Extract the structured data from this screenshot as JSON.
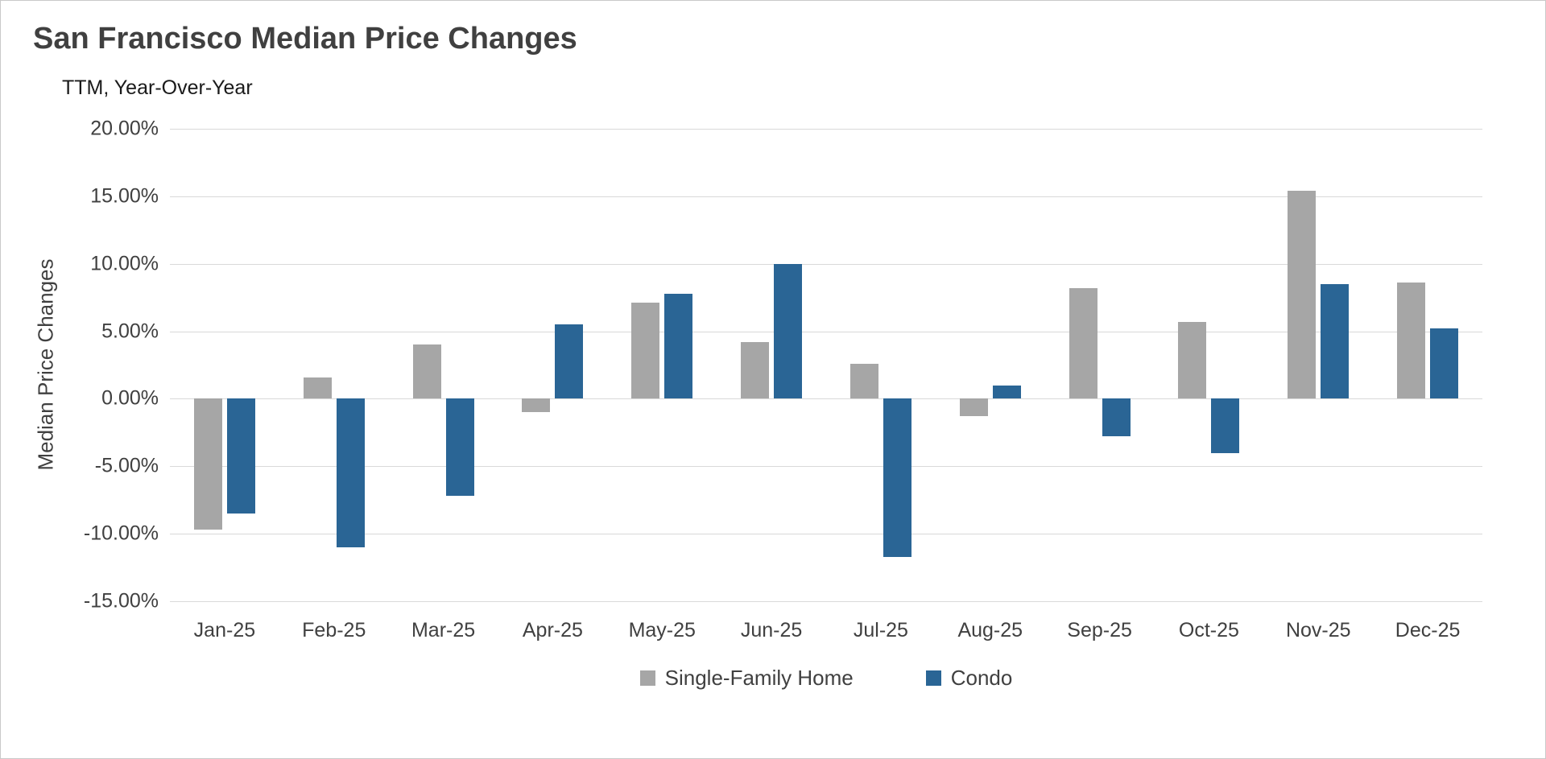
{
  "chart_data": {
    "type": "bar",
    "title": "San Francisco Median Price Changes",
    "subtitle": "TTM, Year-Over-Year",
    "ylabel": "Median Price Changes",
    "xlabel": "",
    "categories": [
      "Jan-25",
      "Feb-25",
      "Mar-25",
      "Apr-25",
      "May-25",
      "Jun-25",
      "Jul-25",
      "Aug-25",
      "Sep-25",
      "Oct-25",
      "Nov-25",
      "Dec-25"
    ],
    "series": [
      {
        "name": "Single-Family Home",
        "color": "#A6A6A6",
        "values": [
          -9.7,
          1.6,
          4.0,
          -1.0,
          7.1,
          4.2,
          2.6,
          -1.3,
          8.2,
          5.7,
          15.4,
          8.6
        ]
      },
      {
        "name": "Condo",
        "color": "#2A6595",
        "values": [
          -8.5,
          -11.0,
          -7.2,
          5.5,
          7.8,
          10.0,
          -11.7,
          1.0,
          -2.8,
          -4.0,
          8.5,
          5.2
        ]
      }
    ],
    "value_unit": "%",
    "ylim": [
      -15,
      20
    ],
    "ytick_values": [
      20,
      15,
      10,
      5,
      0,
      -5,
      -10,
      -15
    ],
    "ytick_labels": [
      "20.00%",
      "15.00%",
      "10.00%",
      "5.00%",
      "0.00%",
      "-5.00%",
      "-10.00%",
      "-15.00%"
    ],
    "grid": true,
    "legend_position": "bottom",
    "colors": {
      "grid": "#D9D9D9",
      "axis_text": "#404040",
      "title_text": "#404040",
      "background": "#FFFFFF"
    }
  }
}
